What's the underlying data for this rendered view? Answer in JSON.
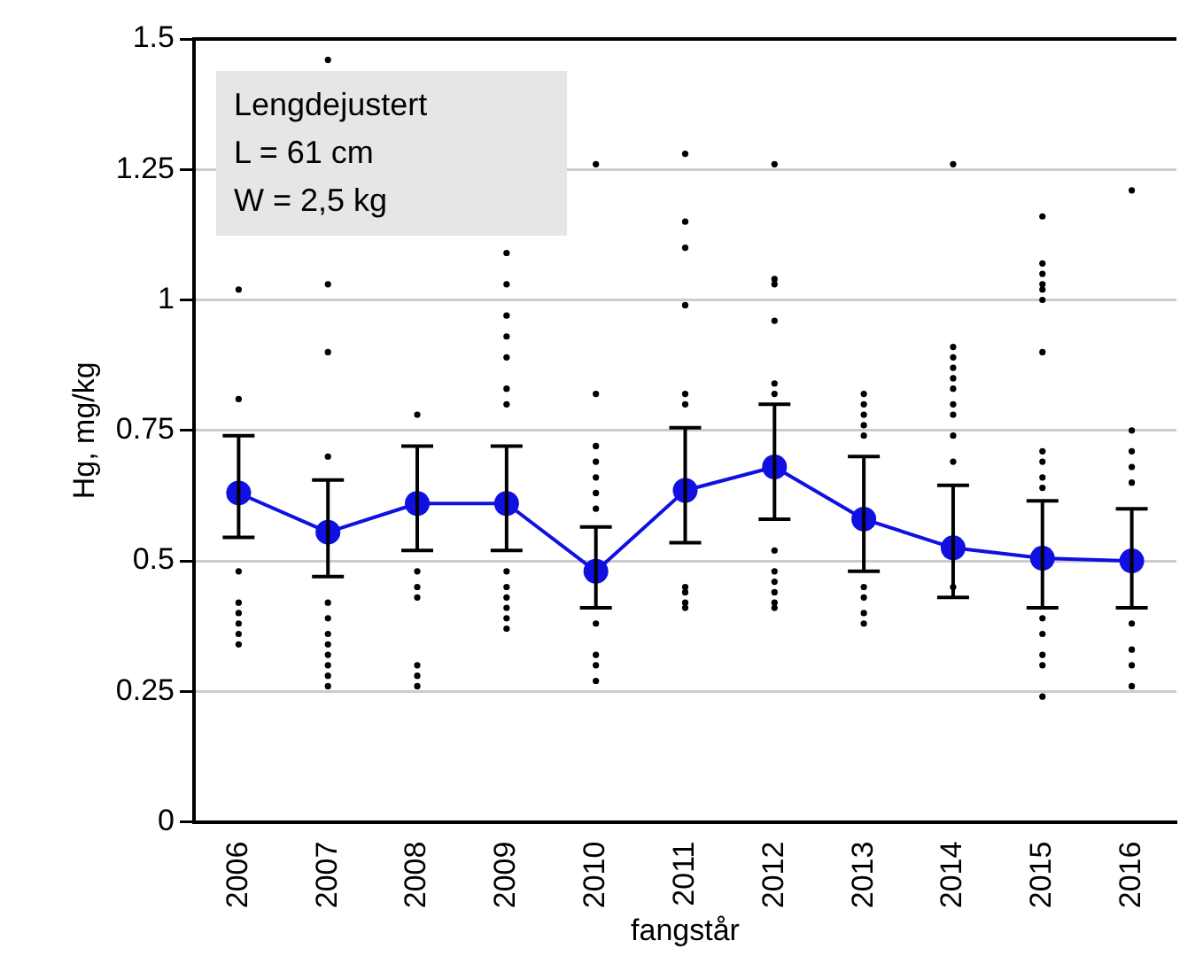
{
  "chart_data": {
    "type": "line",
    "xlabel": "fangstår",
    "ylabel": "Hg, mg/kg",
    "annotations": [
      "Lengdejustert",
      "L = 61 cm",
      "W = 2,5 kg"
    ],
    "x": [
      2006,
      2007,
      2008,
      2009,
      2010,
      2011,
      2012,
      2013,
      2014,
      2015,
      2016
    ],
    "xlim": [
      2005.5,
      2016.5
    ],
    "xticks": [
      2006,
      2007,
      2008,
      2009,
      2010,
      2011,
      2012,
      2013,
      2014,
      2015,
      2016
    ],
    "ylim": [
      0,
      1.5
    ],
    "yticks": [
      0,
      0.25,
      0.5,
      0.75,
      1,
      1.25,
      1.5
    ],
    "grid": "y",
    "legend": false,
    "series": [
      {
        "type": "scatter",
        "color": "#000000",
        "marker": "circle",
        "x": [
          2006,
          2006,
          2006,
          2006,
          2006,
          2006,
          2006,
          2006,
          2007,
          2007,
          2007,
          2007,
          2007,
          2007,
          2007,
          2007,
          2007,
          2007,
          2007,
          2007,
          2008,
          2008,
          2008,
          2008,
          2008,
          2008,
          2008,
          2009,
          2009,
          2009,
          2009,
          2009,
          2009,
          2009,
          2009,
          2009,
          2009,
          2009,
          2009,
          2009,
          2010,
          2010,
          2010,
          2010,
          2010,
          2010,
          2010,
          2010,
          2010,
          2010,
          2010,
          2011,
          2011,
          2011,
          2011,
          2011,
          2011,
          2011,
          2011,
          2011,
          2011,
          2012,
          2012,
          2012,
          2012,
          2012,
          2012,
          2012,
          2012,
          2012,
          2012,
          2012,
          2012,
          2013,
          2013,
          2013,
          2013,
          2013,
          2013,
          2013,
          2013,
          2013,
          2014,
          2014,
          2014,
          2014,
          2014,
          2014,
          2014,
          2014,
          2014,
          2014,
          2014,
          2015,
          2015,
          2015,
          2015,
          2015,
          2015,
          2015,
          2015,
          2015,
          2015,
          2015,
          2015,
          2015,
          2015,
          2015,
          2015,
          2016,
          2016,
          2016,
          2016,
          2016,
          2016,
          2016,
          2016,
          2016
        ],
        "values": [
          1.02,
          0.81,
          0.48,
          0.42,
          0.4,
          0.38,
          0.36,
          0.34,
          1.46,
          1.03,
          0.9,
          0.7,
          0.42,
          0.39,
          0.36,
          0.34,
          0.32,
          0.3,
          0.28,
          0.26,
          0.78,
          0.48,
          0.45,
          0.43,
          0.3,
          0.28,
          0.26,
          1.09,
          1.03,
          0.97,
          0.93,
          0.89,
          0.83,
          0.8,
          0.48,
          0.45,
          0.43,
          0.41,
          0.39,
          0.37,
          1.26,
          0.82,
          0.72,
          0.69,
          0.66,
          0.63,
          0.6,
          0.38,
          0.32,
          0.3,
          0.27,
          1.28,
          1.15,
          1.1,
          0.99,
          0.82,
          0.8,
          0.45,
          0.44,
          0.42,
          0.41,
          1.26,
          1.04,
          1.03,
          0.96,
          0.84,
          0.82,
          0.52,
          0.48,
          0.46,
          0.44,
          0.42,
          0.41,
          0.82,
          0.8,
          0.78,
          0.76,
          0.74,
          0.45,
          0.43,
          0.4,
          0.38,
          1.26,
          0.91,
          0.89,
          0.87,
          0.85,
          0.83,
          0.8,
          0.78,
          0.74,
          0.69,
          0.45,
          1.16,
          1.07,
          1.05,
          1.03,
          1.02,
          1,
          0.9,
          0.71,
          0.69,
          0.66,
          0.64,
          0.39,
          0.36,
          0.32,
          0.3,
          0.24,
          1.21,
          0.75,
          0.71,
          0.68,
          0.65,
          0.38,
          0.33,
          0.3,
          0.26
        ]
      },
      {
        "color": "#1010e0",
        "marker": "circle",
        "line_style": "solid",
        "values": [
          0.63,
          0.555,
          0.61,
          0.61,
          0.48,
          0.635,
          0.68,
          0.58,
          0.525,
          0.505,
          0.5
        ],
        "errors": [
          [
            0.545,
            0.74
          ],
          [
            0.47,
            0.655
          ],
          [
            0.52,
            0.72
          ],
          [
            0.52,
            0.72
          ],
          [
            0.41,
            0.565
          ],
          [
            0.535,
            0.755
          ],
          [
            0.58,
            0.8
          ],
          [
            0.48,
            0.7
          ],
          [
            0.43,
            0.645
          ],
          [
            0.41,
            0.615
          ],
          [
            0.41,
            0.6
          ]
        ]
      }
    ]
  }
}
